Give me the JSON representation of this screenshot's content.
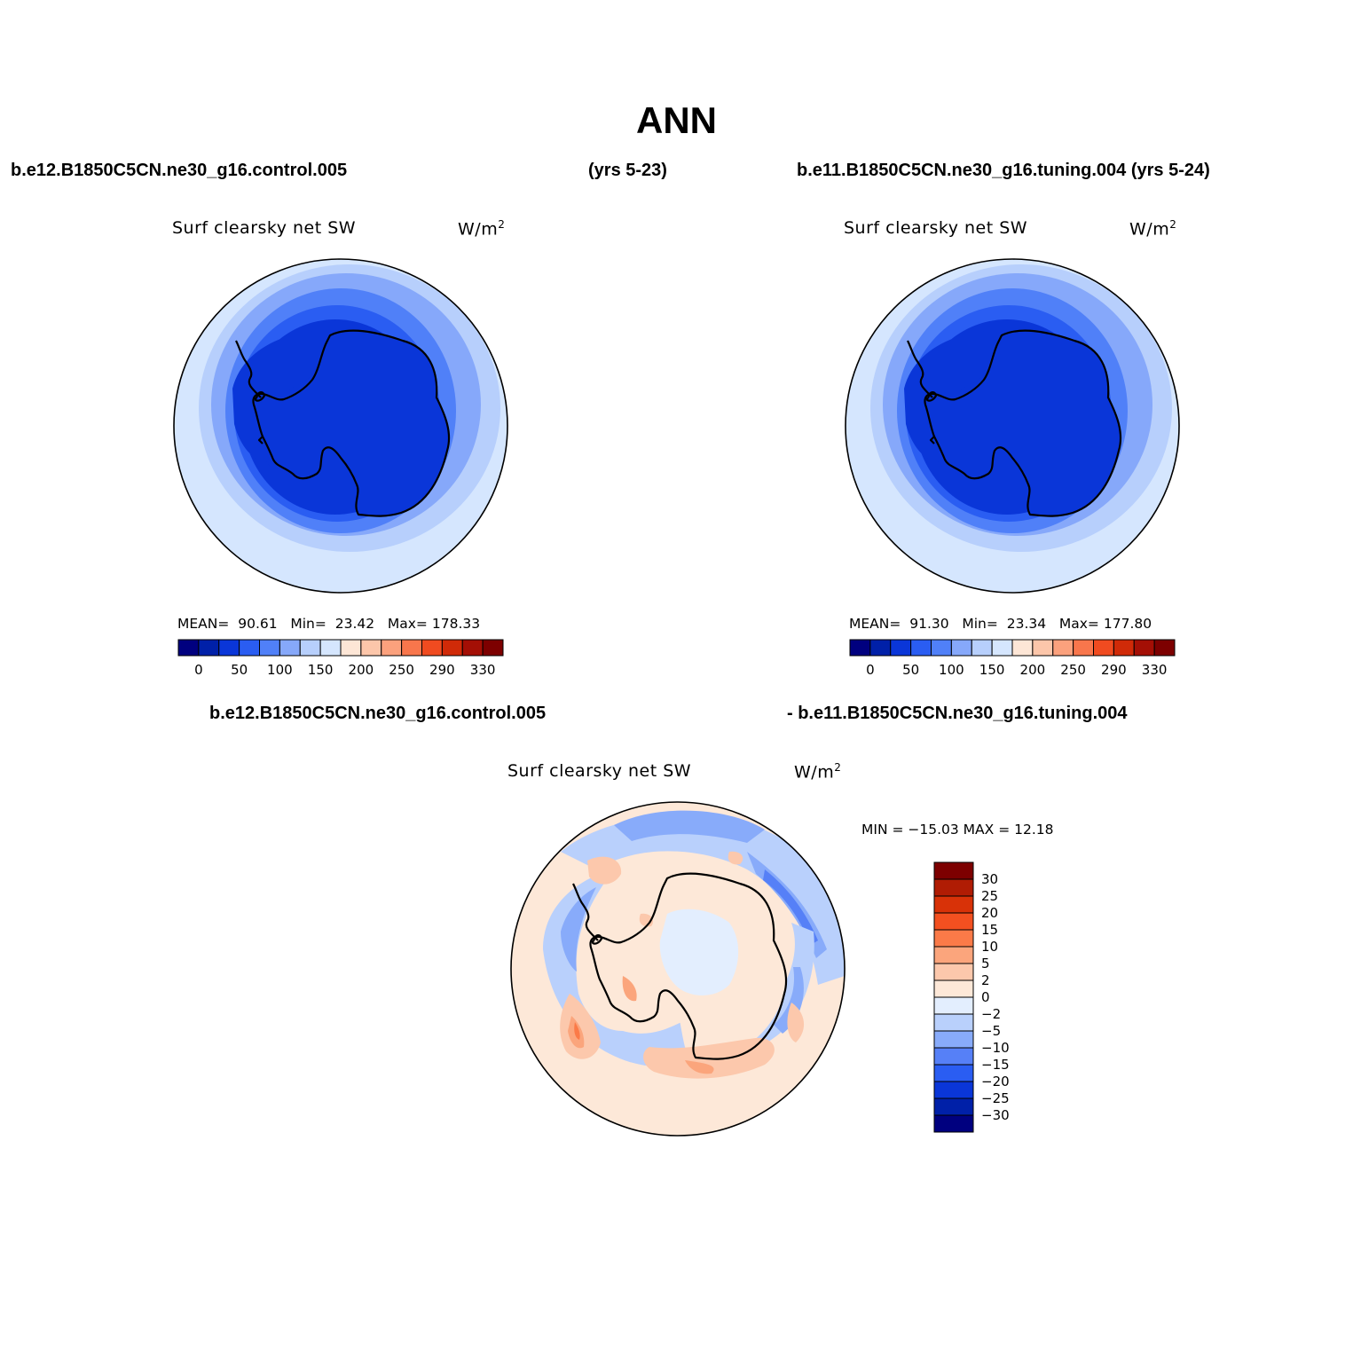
{
  "title": "ANN",
  "case1": "b.e12.B1850C5CN.ne30_g16.control.005",
  "case1_years": "(yrs 5-23)",
  "case2": "b.e11.B1850C5CN.ne30_g16.tuning.004 (yrs 5-24)",
  "diff_case1": "b.e12.B1850C5CN.ne30_g16.control.005",
  "diff_case2": "- b.e11.B1850C5CN.ne30_g16.tuning.004",
  "variable": "Surf clearsky net SW",
  "units": "W/m",
  "units_sup": "2",
  "panels": [
    {
      "mean_label": "MEAN=",
      "mean": "90.61",
      "min_label": "Min=",
      "min": "23.42",
      "max_label": "Max=",
      "max": "178.33"
    },
    {
      "mean_label": "MEAN=",
      "mean": "91.30",
      "min_label": "Min=",
      "min": "23.34",
      "max_label": "Max=",
      "max": "177.80"
    }
  ],
  "diff_stats": "MIN = −15.03 MAX =   12.18",
  "colorbar_main": {
    "colors": [
      "#00007f",
      "#0020a8",
      "#0a36d8",
      "#2a5df2",
      "#5080f8",
      "#86a8fa",
      "#b7cffc",
      "#d5e6fe",
      "#fde6d6",
      "#fcc6aa",
      "#fba17d",
      "#f8764c",
      "#f04b20",
      "#d02a08",
      "#a40f05",
      "#7d0000"
    ],
    "labels": [
      "0",
      "50",
      "100",
      "150",
      "200",
      "250",
      "290",
      "330"
    ]
  },
  "colorbar_diff": {
    "colors": [
      "#7d0000",
      "#b01c04",
      "#d83208",
      "#f35020",
      "#fb7a48",
      "#fba57c",
      "#fcc8ac",
      "#fde8d8",
      "#e3eefe",
      "#b9d0fc",
      "#88abfa",
      "#5680f7",
      "#2a5df2",
      "#0a36d8",
      "#0020a8",
      "#00007f"
    ],
    "labels": [
      "30",
      "25",
      "20",
      "15",
      "10",
      "5",
      "2",
      "0",
      "−2",
      "−5",
      "−10",
      "−15",
      "−20",
      "−25",
      "−30"
    ]
  }
}
